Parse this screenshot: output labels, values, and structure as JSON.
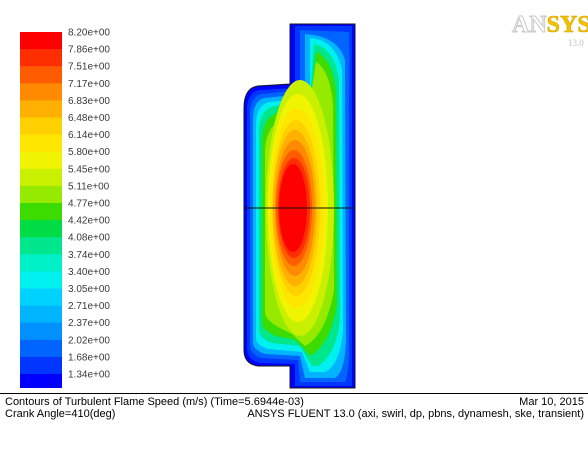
{
  "legend": {
    "labels": [
      "8.20e+00",
      "7.86e+00",
      "7.51e+00",
      "7.17e+00",
      "6.83e+00",
      "6.48e+00",
      "6.14e+00",
      "5.80e+00",
      "5.45e+00",
      "5.11e+00",
      "4.77e+00",
      "4.42e+00",
      "4.08e+00",
      "3.74e+00",
      "3.40e+00",
      "3.05e+00",
      "2.71e+00",
      "2.37e+00",
      "2.02e+00",
      "1.68e+00",
      "1.34e+00"
    ],
    "colors": [
      "#ff0000",
      "#ff2e00",
      "#ff5c00",
      "#ff8a00",
      "#ffb000",
      "#ffd000",
      "#ffe600",
      "#f0f400",
      "#c8f000",
      "#96ea00",
      "#3cdc00",
      "#00dc46",
      "#00e68c",
      "#00f0c8",
      "#00f0f0",
      "#00d2ff",
      "#00b4ff",
      "#0090ff",
      "#0064ff",
      "#0036ff",
      "#0000ff"
    ]
  },
  "logo": {
    "brand_part1": "AN",
    "brand_part2": "SYS",
    "version": "13.0"
  },
  "footer": {
    "title": "Contours of Turbulent Flame Speed (m/s)  (Time=5.6944e-03)",
    "date": "Mar 10, 2015",
    "crank": "Crank Angle=410(deg)",
    "solver": "ANSYS FLUENT 13.0 (axi, swirl, dp, pbns, dynamesh, ske, transient)"
  }
}
